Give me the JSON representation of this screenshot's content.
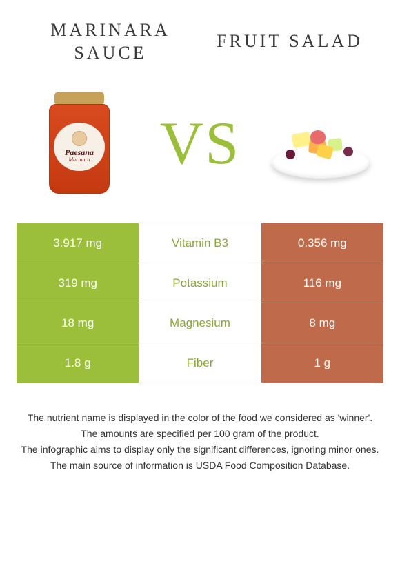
{
  "header": {
    "left_title": "MARINARA SAUCE",
    "right_title": "FRUIT SALAD",
    "vs_text": "VS"
  },
  "jar": {
    "brand": "Paesana",
    "variant": "Marinara"
  },
  "colors": {
    "left_bg": "#9bbf3a",
    "right_bg": "#bf6a4a",
    "nutrient_text": "#8aa832"
  },
  "table": {
    "rows": [
      {
        "nutrient": "Vitamin B3",
        "left": "3.917 mg",
        "right": "0.356 mg"
      },
      {
        "nutrient": "Potassium",
        "left": "319 mg",
        "right": "116 mg"
      },
      {
        "nutrient": "Magnesium",
        "left": "18 mg",
        "right": "8 mg"
      },
      {
        "nutrient": "Fiber",
        "left": "1.8 g",
        "right": "1 g"
      }
    ]
  },
  "footer": {
    "l1": "The nutrient name is displayed in the color of the food we considered as 'winner'.",
    "l2": "The amounts are specified per 100 gram of the product.",
    "l3": "The infographic aims to display only the significant differences, ignoring minor ones.",
    "l4": "The main source of information is USDA Food Composition Database."
  }
}
